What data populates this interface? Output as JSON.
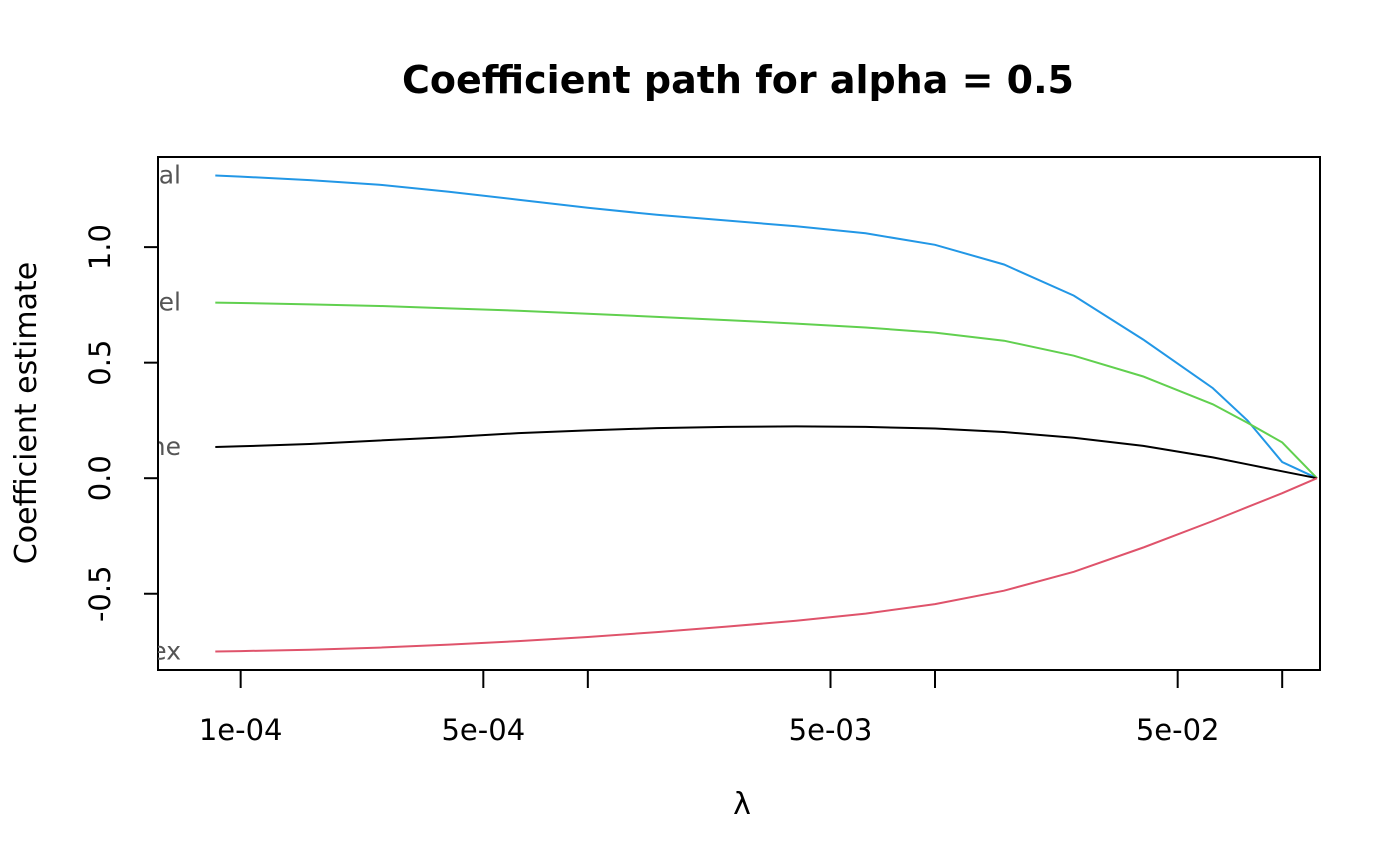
{
  "chart_data": {
    "type": "line",
    "title": "Coefficient path for alpha = 0.5",
    "xlabel": "λ",
    "ylabel": "Coefficient estimate",
    "x_scale": "log",
    "xlim": [
      5.78e-05,
      0.1285
    ],
    "ylim": [
      -0.83,
      1.39
    ],
    "x_major_ticks": [
      0.0001,
      0.0005,
      0.005,
      0.05
    ],
    "x_major_tick_labels": [
      "1e-04",
      "5e-04",
      "5e-03",
      "5e-02"
    ],
    "x_minor_ticks": [
      0.001,
      0.01,
      0.1
    ],
    "y_ticks": [
      -0.5,
      0.0,
      0.5,
      1.0
    ],
    "y_tick_labels": [
      "-0.5",
      "0.0",
      "0.5",
      "1.0"
    ],
    "grid": false,
    "x": [
      8.45e-05,
      0.0001,
      0.000158,
      0.000251,
      0.000398,
      0.000631,
      0.001,
      0.00158,
      0.00251,
      0.00398,
      0.00631,
      0.01,
      0.0158,
      0.0251,
      0.0398,
      0.0631,
      0.0794,
      0.1,
      0.126
    ],
    "series": [
      {
        "label": "al",
        "color": "#2297E6",
        "values": [
          1.31,
          1.305,
          1.29,
          1.27,
          1.24,
          1.205,
          1.17,
          1.14,
          1.115,
          1.09,
          1.06,
          1.01,
          0.925,
          0.79,
          0.6,
          0.39,
          0.25,
          0.07,
          0.0
        ]
      },
      {
        "label": "el",
        "color": "#61D04F",
        "values": [
          0.76,
          0.758,
          0.752,
          0.745,
          0.735,
          0.725,
          0.712,
          0.698,
          0.684,
          0.669,
          0.652,
          0.63,
          0.595,
          0.53,
          0.44,
          0.32,
          0.24,
          0.155,
          0.0
        ]
      },
      {
        "label": "ne",
        "color": "#000000",
        "values": [
          0.135,
          0.138,
          0.148,
          0.163,
          0.178,
          0.195,
          0.207,
          0.217,
          0.222,
          0.224,
          0.222,
          0.215,
          0.2,
          0.175,
          0.14,
          0.09,
          0.06,
          0.03,
          0.0
        ]
      },
      {
        "label": "ex",
        "color": "#DF536B",
        "values": [
          -0.75,
          -0.748,
          -0.742,
          -0.733,
          -0.72,
          -0.705,
          -0.687,
          -0.666,
          -0.642,
          -0.617,
          -0.586,
          -0.545,
          -0.487,
          -0.405,
          -0.3,
          -0.185,
          -0.125,
          -0.065,
          0.0
        ]
      }
    ]
  }
}
